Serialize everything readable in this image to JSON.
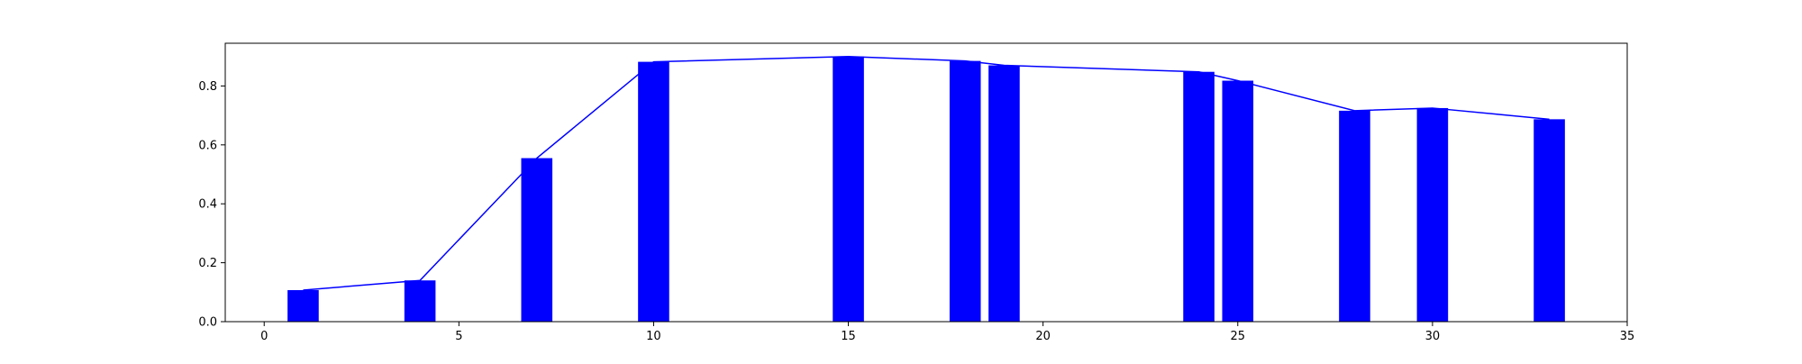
{
  "chart_data": {
    "type": "bar",
    "title": "",
    "xlabel": "",
    "ylabel": "",
    "xlim": [
      -1,
      35
    ],
    "ylim": [
      0,
      0.945
    ],
    "xticks": [
      0,
      5,
      10,
      15,
      20,
      25,
      30,
      35
    ],
    "yticks": [
      0.0,
      0.2,
      0.4,
      0.6,
      0.8
    ],
    "xtick_labels": [
      "0",
      "5",
      "10",
      "15",
      "20",
      "25",
      "30",
      "35"
    ],
    "ytick_labels": [
      "0.0",
      "0.2",
      "0.4",
      "0.6",
      "0.8"
    ],
    "grid": false,
    "color": "#0000ff",
    "bar_width": 0.8,
    "x": [
      1,
      4,
      7,
      10,
      15,
      18,
      19,
      24,
      25,
      28,
      30,
      33
    ],
    "values": [
      0.107,
      0.14,
      0.555,
      0.882,
      0.9,
      0.885,
      0.87,
      0.848,
      0.818,
      0.716,
      0.725,
      0.687
    ],
    "series": [
      {
        "type": "bar",
        "values": [
          0.107,
          0.14,
          0.555,
          0.882,
          0.9,
          0.885,
          0.87,
          0.848,
          0.818,
          0.716,
          0.725,
          0.687
        ]
      },
      {
        "type": "line",
        "values": [
          0.107,
          0.14,
          0.555,
          0.882,
          0.9,
          0.885,
          0.87,
          0.848,
          0.818,
          0.716,
          0.725,
          0.687
        ]
      }
    ]
  }
}
